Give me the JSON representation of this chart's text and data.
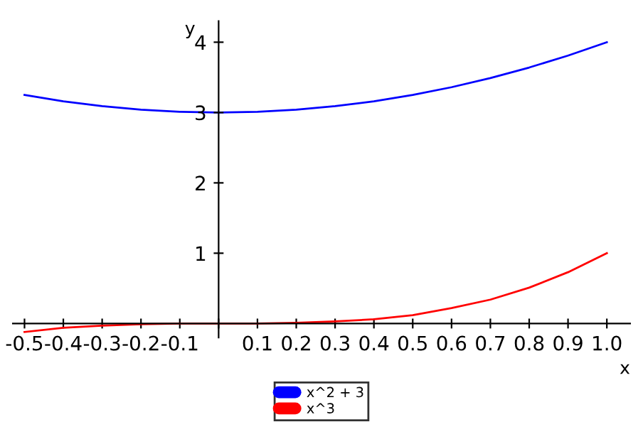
{
  "chart_data": {
    "type": "line",
    "xlabel": "x",
    "ylabel": "y",
    "x": [
      -0.5,
      -0.4,
      -0.3,
      -0.2,
      -0.1,
      0,
      0.1,
      0.2,
      0.3,
      0.4,
      0.5,
      0.6,
      0.7,
      0.8,
      0.9,
      1.0
    ],
    "series": [
      {
        "name": "x^2 + 3",
        "color": "#0000ff",
        "values": [
          3.25,
          3.16,
          3.09,
          3.04,
          3.01,
          3.0,
          3.01,
          3.04,
          3.09,
          3.16,
          3.25,
          3.36,
          3.49,
          3.64,
          3.81,
          4.0
        ]
      },
      {
        "name": "x^3",
        "color": "#ff0000",
        "values": [
          -0.12,
          -0.06,
          -0.03,
          -0.01,
          0.0,
          0.0,
          0.0,
          0.01,
          0.03,
          0.06,
          0.12,
          0.22,
          0.34,
          0.51,
          0.73,
          1.0
        ]
      }
    ],
    "xlim": [
      -0.53,
      1.06
    ],
    "ylim": [
      -0.2,
      4.3
    ],
    "xticks": [
      -0.5,
      -0.4,
      -0.3,
      -0.2,
      -0.1,
      {
        "value": 0,
        "label": null
      },
      0.1,
      0.2,
      0.3,
      0.4,
      0.5,
      0.6,
      0.7,
      0.8,
      0.9,
      {
        "value": 1.0,
        "label": "1.0"
      }
    ],
    "yticks": [
      1,
      2,
      3,
      4
    ],
    "legend": "bottom",
    "grid": false,
    "marker": "none",
    "line_style": "solid"
  }
}
